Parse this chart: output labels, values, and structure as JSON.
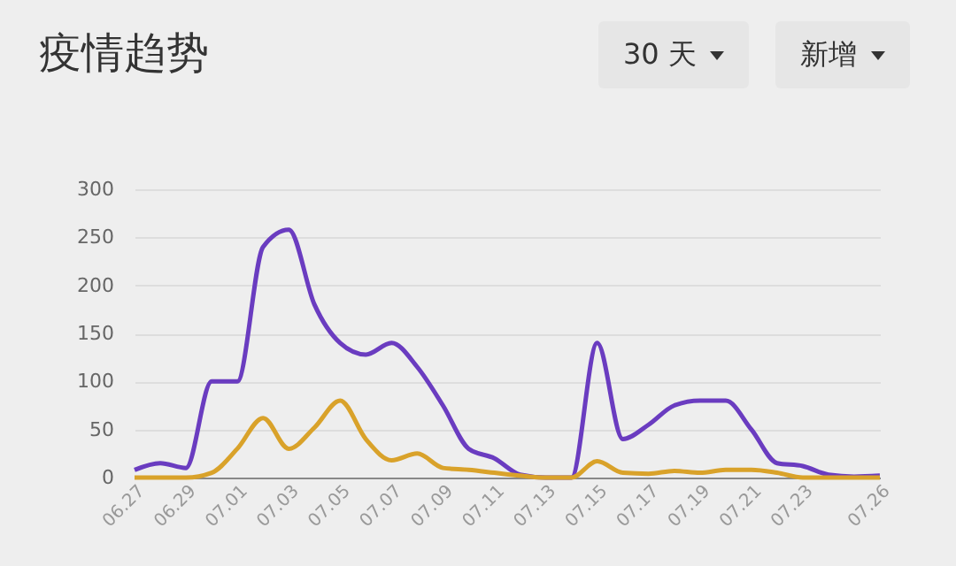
{
  "chart_data": {
    "type": "line",
    "title": "疫情趋势",
    "annotations": [
      "30 天",
      "新增"
    ],
    "categories": [
      "06.27",
      null,
      "06.29",
      null,
      "07.01",
      null,
      "07.03",
      null,
      "07.05",
      null,
      "07.07",
      null,
      "07.09",
      null,
      "07.11",
      null,
      "07.13",
      null,
      "07.15",
      null,
      "07.17",
      null,
      "07.19",
      null,
      "07.21",
      null,
      "07.23",
      null,
      null,
      "07.26"
    ],
    "series": [
      {
        "color": "#6a3cc0",
        "values": [
          8,
          15,
          10,
          100,
          100,
          240,
          258,
          180,
          140,
          128,
          140,
          115,
          75,
          30,
          20,
          3,
          0,
          0,
          140,
          40,
          55,
          75,
          80,
          80,
          50,
          15,
          12,
          3,
          1,
          2
        ]
      },
      {
        "color": "#d9a22a",
        "values": [
          0,
          0,
          0,
          5,
          30,
          62,
          30,
          52,
          80,
          40,
          18,
          25,
          10,
          8,
          5,
          2,
          0,
          0,
          17,
          5,
          4,
          7,
          5,
          8,
          8,
          5,
          0,
          0,
          0,
          0
        ]
      }
    ],
    "ylim": [
      0,
      300
    ],
    "yticks": [
      0,
      50,
      100,
      150,
      200,
      250,
      300
    ],
    "grid": "y",
    "marker": "none",
    "line_style": "solid"
  }
}
